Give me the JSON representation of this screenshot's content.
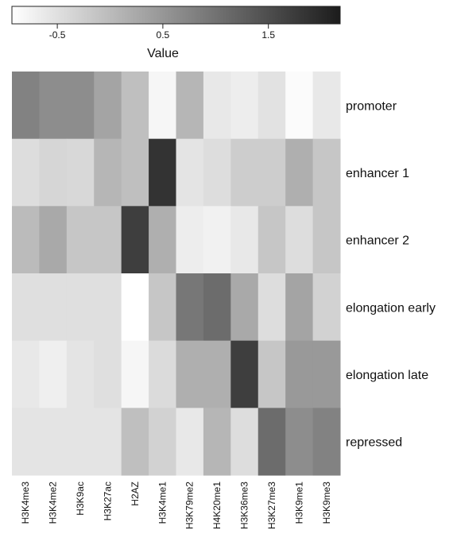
{
  "chart_data": {
    "type": "heatmap",
    "columns": [
      "H3K4me3",
      "H3K4me2",
      "H3K9ac",
      "H3K27ac",
      "H2AZ",
      "H3K4me1",
      "H3K79me2",
      "H4K20me1",
      "H3K36me3",
      "H3K27me3",
      "H3K9me1",
      "H3K9me3"
    ],
    "rows": [
      "promoter",
      "enhancer 1",
      "enhancer 2",
      "elongation early",
      "elongation late",
      "repressed"
    ],
    "values": [
      [
        0.78,
        0.63,
        0.63,
        0.31,
        -0.06,
        -0.81,
        0.07,
        -0.62,
        -0.68,
        -0.53,
        -0.87,
        -0.62
      ],
      [
        -0.46,
        -0.37,
        -0.4,
        0.07,
        -0.06,
        1.87,
        -0.56,
        -0.46,
        -0.25,
        -0.25,
        0.16,
        -0.15
      ],
      [
        0.0,
        0.25,
        -0.15,
        -0.15,
        1.71,
        0.16,
        -0.68,
        -0.74,
        -0.62,
        -0.15,
        -0.46,
        -0.15
      ],
      [
        -0.49,
        -0.49,
        -0.49,
        -0.49,
        -0.93,
        -0.15,
        0.94,
        1.09,
        0.25,
        -0.46,
        0.31,
        -0.31
      ],
      [
        -0.62,
        -0.71,
        -0.56,
        -0.49,
        -0.81,
        -0.43,
        0.16,
        0.16,
        1.71,
        -0.15,
        0.47,
        0.47
      ],
      [
        -0.56,
        -0.56,
        -0.56,
        -0.56,
        -0.06,
        -0.31,
        -0.62,
        0.07,
        -0.46,
        1.09,
        0.63,
        0.78
      ]
    ],
    "colorbar_title": "Value",
    "zlim": [
      -0.93,
      2.18
    ],
    "zticks": [
      -0.5,
      0.5,
      1.5
    ],
    "colors": [
      "#ffffff",
      "#1c1c1c"
    ]
  }
}
